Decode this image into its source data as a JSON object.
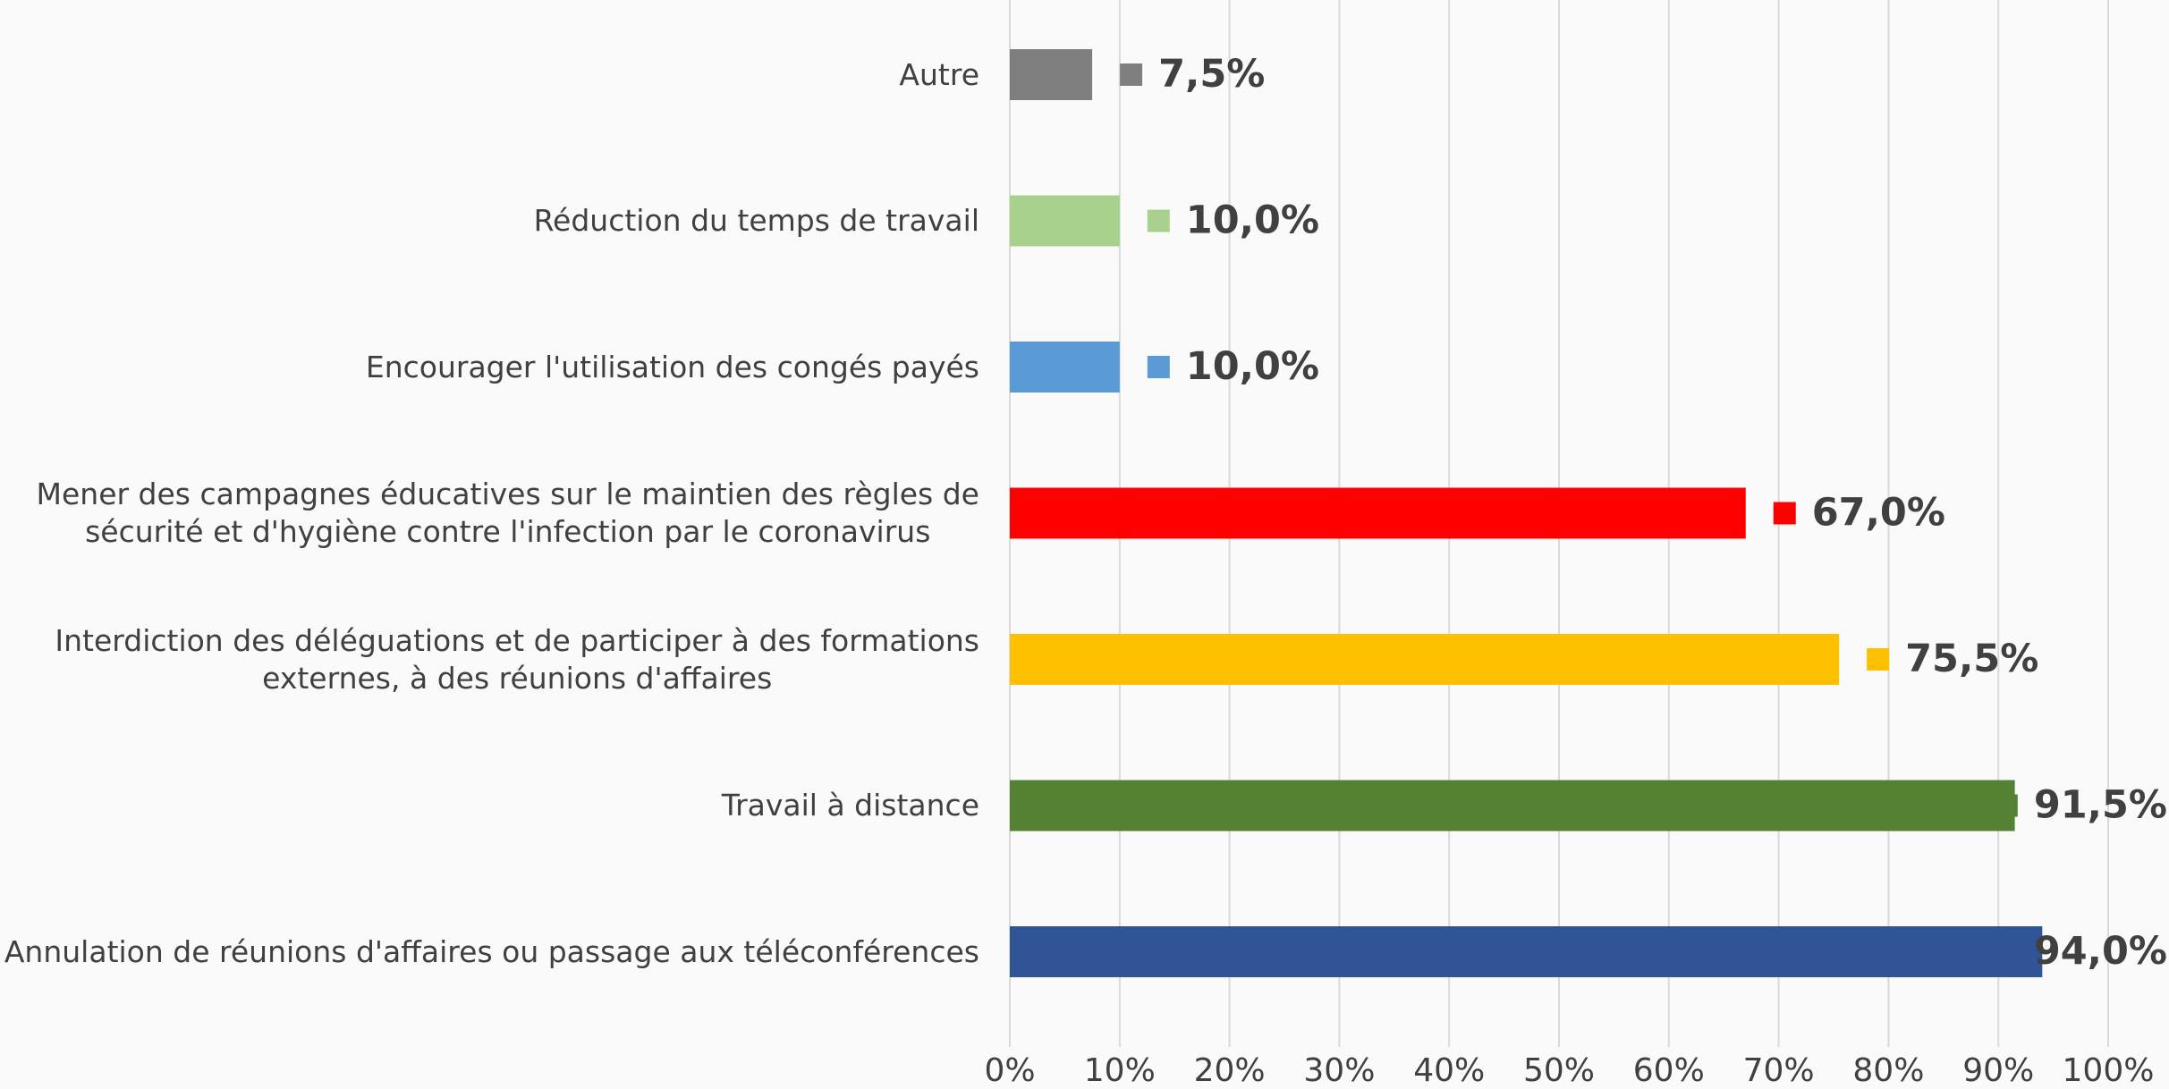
{
  "chart_data": {
    "type": "hbar",
    "categories": [
      "Autre",
      "Réduction du temps de travail",
      "Encourager l'utilisation des congés payés",
      "Mener des campagnes éducatives sur le maintien des règles de\nsécurité et d'hygiène contre l'infection par le coronavirus",
      "Interdiction des déléguations et de participer à des formations\nexternes, à des réunions d'affaires",
      "Travail à distance",
      "Annulation de réunions d'affaires ou passage aux téléconférences"
    ],
    "values": [
      7.5,
      10.0,
      10.0,
      67.0,
      75.5,
      91.5,
      94.0
    ],
    "value_labels": [
      "7,5%",
      "10,0%",
      "10,0%",
      "67,0%",
      "75,5%",
      "91,5%",
      "94,0%"
    ],
    "colors": [
      "#7f7f7f",
      "#a9d18e",
      "#5b9bd5",
      "#ff0000",
      "#ffc000",
      "#548235",
      "#2f5597"
    ],
    "xlim": [
      0,
      100
    ],
    "xticks": [
      {
        "value": 0,
        "label": "0%"
      },
      {
        "value": 10,
        "label": "10%"
      },
      {
        "value": 20,
        "label": "20%"
      },
      {
        "value": 30,
        "label": "30%"
      },
      {
        "value": 40,
        "label": "40%"
      },
      {
        "value": 50,
        "label": "50%"
      },
      {
        "value": 60,
        "label": "60%"
      },
      {
        "value": 70,
        "label": "70%"
      },
      {
        "value": 80,
        "label": "80%"
      },
      {
        "value": 90,
        "label": "90%"
      },
      {
        "value": 100,
        "label": "100%"
      }
    ],
    "grid": true
  }
}
